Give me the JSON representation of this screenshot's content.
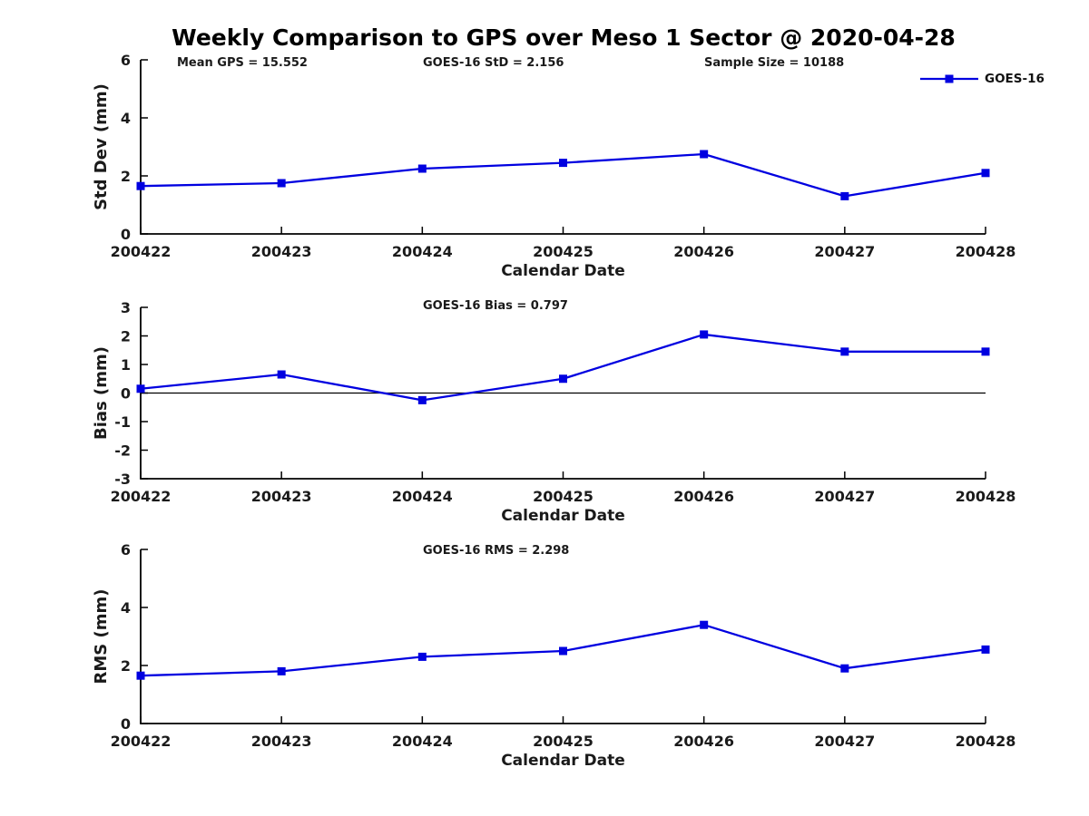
{
  "title": "Weekly Comparison to GPS over Meso 1 Sector @ 2020-04-28",
  "legend": {
    "label": "GOES-16",
    "position": "top-right",
    "marker": "square"
  },
  "colors": {
    "series": "#0000e0",
    "axis": "#000000",
    "text": "#1a1a1a",
    "zero_line": "#000000",
    "background": "#ffffff"
  },
  "chart_data": [
    {
      "type": "line",
      "ylabel": "Std Dev (mm)",
      "xlabel": "Calendar Date",
      "ylim": [
        0,
        6
      ],
      "yticks": [
        0,
        2,
        4,
        6
      ],
      "grid": false,
      "categories": [
        "200422",
        "200423",
        "200424",
        "200425",
        "200426",
        "200427",
        "200428"
      ],
      "series": [
        {
          "name": "GOES-16",
          "marker": "square",
          "values": [
            1.65,
            1.75,
            2.25,
            2.45,
            2.75,
            1.3,
            2.1
          ]
        }
      ],
      "annotations": [
        "Mean GPS = 15.552",
        "GOES-16 StD = 2.156",
        "Sample Size = 10188"
      ],
      "legend_position": "top-right"
    },
    {
      "type": "line",
      "ylabel": "Bias (mm)",
      "xlabel": "Calendar Date",
      "ylim": [
        -3,
        3
      ],
      "yticks": [
        -3,
        -2,
        -1,
        0,
        1,
        2,
        3
      ],
      "zero_line": true,
      "grid": false,
      "categories": [
        "200422",
        "200423",
        "200424",
        "200425",
        "200426",
        "200427",
        "200428"
      ],
      "series": [
        {
          "name": "GOES-16",
          "marker": "square",
          "values": [
            0.15,
            0.65,
            -0.25,
            0.5,
            2.05,
            1.45,
            1.45
          ]
        }
      ],
      "annotations": [
        "GOES-16 Bias  = 0.797"
      ]
    },
    {
      "type": "line",
      "ylabel": "RMS (mm)",
      "xlabel": "Calendar Date",
      "ylim": [
        0,
        6
      ],
      "yticks": [
        0,
        2,
        4,
        6
      ],
      "grid": false,
      "categories": [
        "200422",
        "200423",
        "200424",
        "200425",
        "200426",
        "200427",
        "200428"
      ],
      "series": [
        {
          "name": "GOES-16",
          "marker": "square",
          "values": [
            1.65,
            1.8,
            2.3,
            2.5,
            3.4,
            1.9,
            2.55
          ]
        }
      ],
      "annotations": [
        "GOES-16 RMS = 2.298"
      ]
    }
  ]
}
